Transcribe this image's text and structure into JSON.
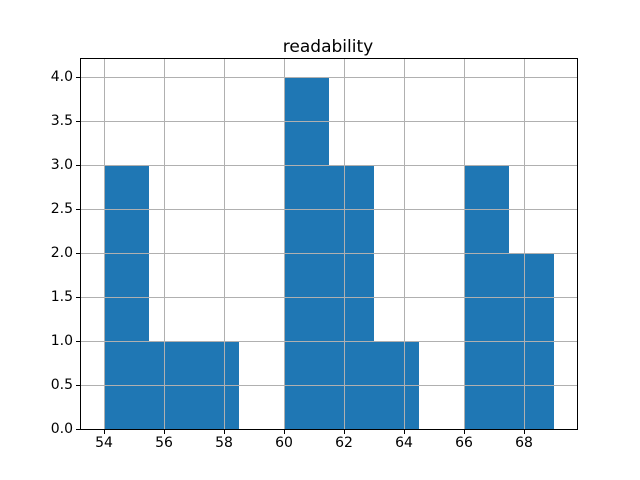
{
  "chart_data": {
    "type": "bar",
    "subtype": "histogram",
    "title": "readability",
    "xlabel": "",
    "ylabel": "",
    "bin_edges": [
      54,
      55.5,
      57,
      58.5,
      60,
      61.5,
      63,
      64.5,
      66,
      67.5,
      69
    ],
    "values": [
      3,
      1,
      1,
      0,
      4,
      3,
      1,
      0,
      3,
      2
    ],
    "xlim": [
      53.25,
      69.75
    ],
    "ylim": [
      0,
      4.2
    ],
    "xticks": [
      54,
      56,
      58,
      60,
      62,
      64,
      66,
      68
    ],
    "xtick_labels": [
      "54",
      "56",
      "58",
      "60",
      "62",
      "64",
      "66",
      "68"
    ],
    "yticks": [
      0.0,
      0.5,
      1.0,
      1.5,
      2.0,
      2.5,
      3.0,
      3.5,
      4.0
    ],
    "ytick_labels": [
      "0.0",
      "0.5",
      "1.0",
      "1.5",
      "2.0",
      "2.5",
      "3.0",
      "3.5",
      "4.0"
    ],
    "grid": true,
    "legend": null,
    "bar_color": "#1f77b4",
    "grid_color": "#b0b0b0",
    "spine_color": "#000000",
    "background_color": "#ffffff"
  }
}
